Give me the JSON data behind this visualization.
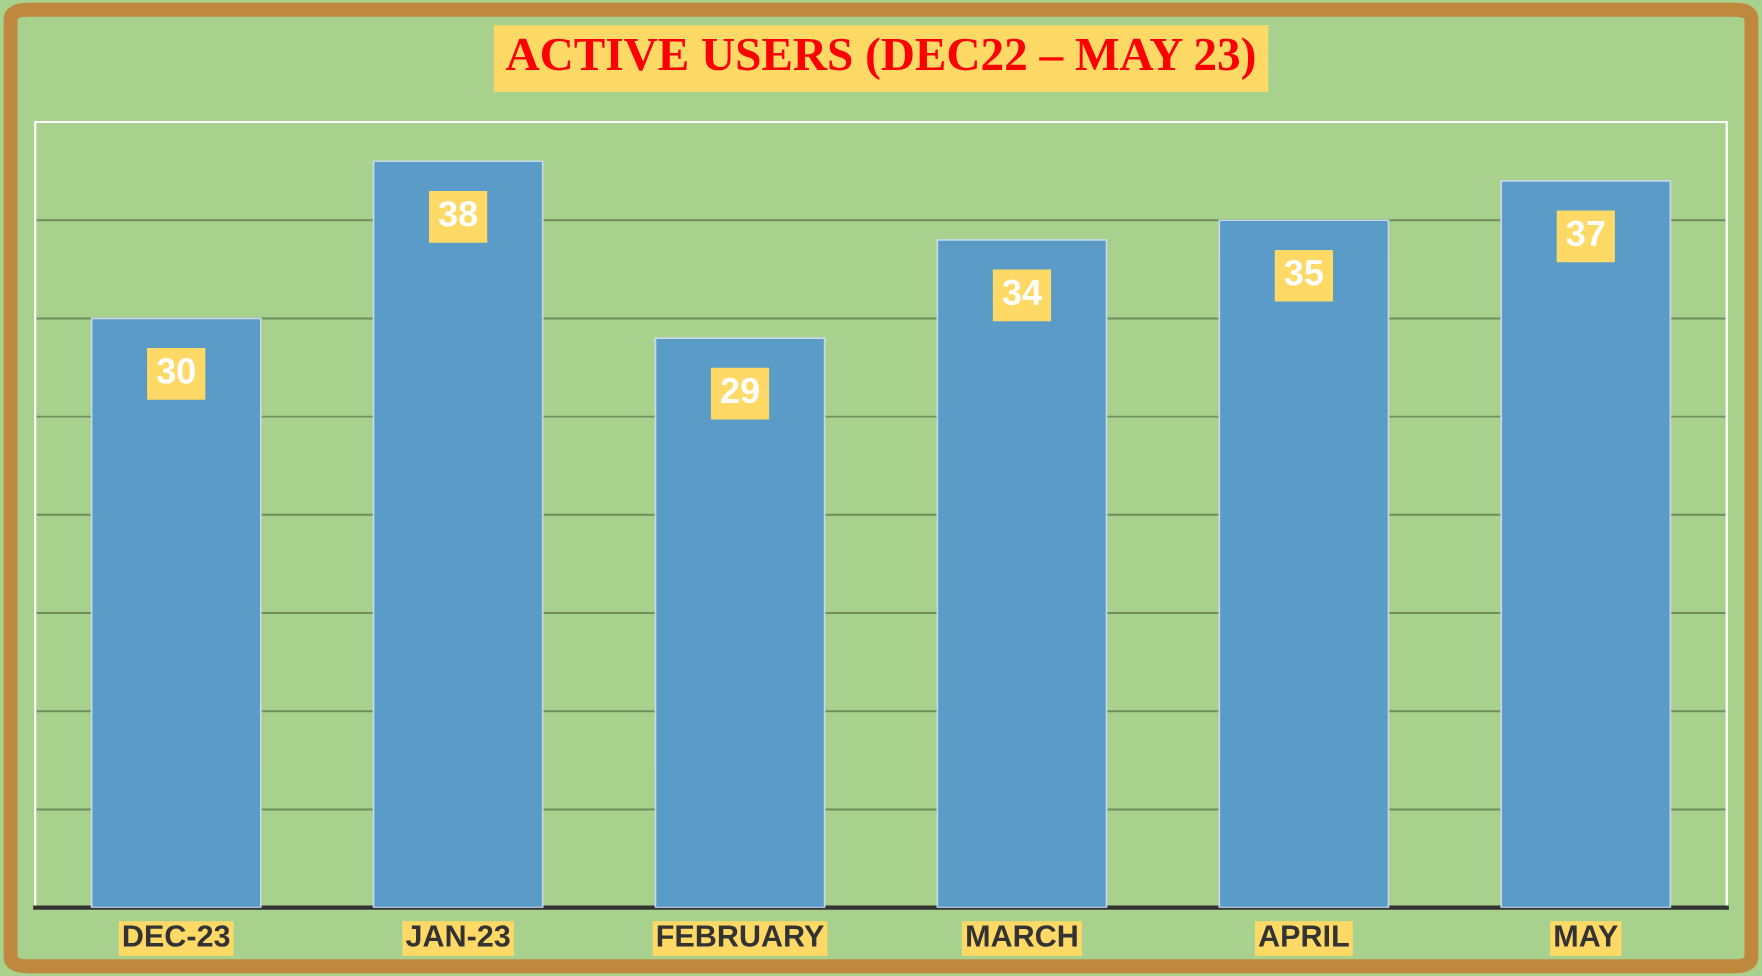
{
  "chart_data": {
    "type": "bar",
    "title": "ACTIVE USERS (DEC22 – MAY 23)",
    "categories": [
      "DEC-23",
      "JAN-23",
      "FEBRUARY",
      "MARCH",
      "APRIL",
      "MAY"
    ],
    "values": [
      30,
      38,
      29,
      34,
      35,
      37
    ],
    "color": "#5b9bc8",
    "data_labels": true,
    "ylim": [
      0,
      40
    ],
    "yticks": [
      {
        "value": 0,
        "label": null
      },
      {
        "value": 5,
        "label": null
      },
      {
        "value": 10,
        "label": null
      },
      {
        "value": 15,
        "label": null
      },
      {
        "value": 20,
        "label": null
      },
      {
        "value": 25,
        "label": null
      },
      {
        "value": 30,
        "label": null
      },
      {
        "value": 35,
        "label": null
      }
    ],
    "grid": "y",
    "tick_labels": "x"
  }
}
